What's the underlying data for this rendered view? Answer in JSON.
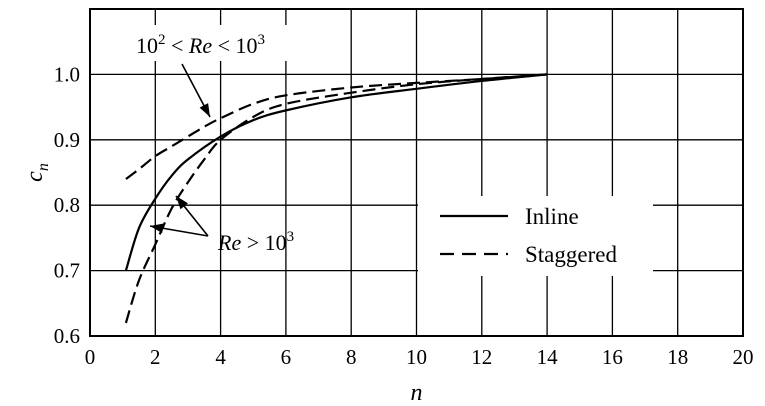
{
  "chart_data": {
    "type": "line",
    "xlabel": "n",
    "ylabel": "c_n",
    "xlim": [
      0,
      20
    ],
    "ylim": [
      0.6,
      1.1
    ],
    "x_ticks": [
      "0",
      "2",
      "4",
      "6",
      "8",
      "10",
      "12",
      "14",
      "16",
      "18",
      "20"
    ],
    "y_ticks": [
      "0.6",
      "0.7",
      "0.8",
      "0.9",
      "1.0"
    ],
    "grid": true,
    "legend_position": "lower-right",
    "series": [
      {
        "key": "inline_high",
        "name": "Inline",
        "style": "solid",
        "legend": true,
        "x": [
          1.1,
          1.5,
          2,
          2.5,
          3,
          4,
          5,
          6,
          8,
          10,
          12,
          14
        ],
        "y": [
          0.7,
          0.765,
          0.81,
          0.845,
          0.87,
          0.905,
          0.93,
          0.945,
          0.965,
          0.978,
          0.99,
          1.0
        ]
      },
      {
        "key": "staggered_low",
        "name": "Staggered",
        "style": "dashed",
        "legend": true,
        "x": [
          1.1,
          1.5,
          2,
          2.5,
          3,
          3.5,
          4,
          5,
          6,
          8,
          10,
          12,
          14
        ],
        "y": [
          0.84,
          0.855,
          0.875,
          0.89,
          0.905,
          0.92,
          0.933,
          0.955,
          0.968,
          0.98,
          0.987,
          0.993,
          1.0
        ]
      },
      {
        "key": "staggered_high",
        "name": "",
        "style": "dashed",
        "legend": false,
        "x": [
          1.1,
          1.5,
          2,
          2.5,
          3,
          3.5,
          4,
          5,
          6,
          8,
          10,
          12,
          14
        ],
        "y": [
          0.62,
          0.685,
          0.74,
          0.795,
          0.835,
          0.87,
          0.9,
          0.935,
          0.955,
          0.972,
          0.985,
          0.993,
          1.0
        ]
      }
    ],
    "annotations": [
      {
        "text_parts": [
          "10",
          "2",
          " <  ",
          "Re",
          " < 10",
          "3"
        ]
      },
      {
        "text_parts": [
          "Re",
          " > 10",
          "3"
        ]
      }
    ]
  }
}
